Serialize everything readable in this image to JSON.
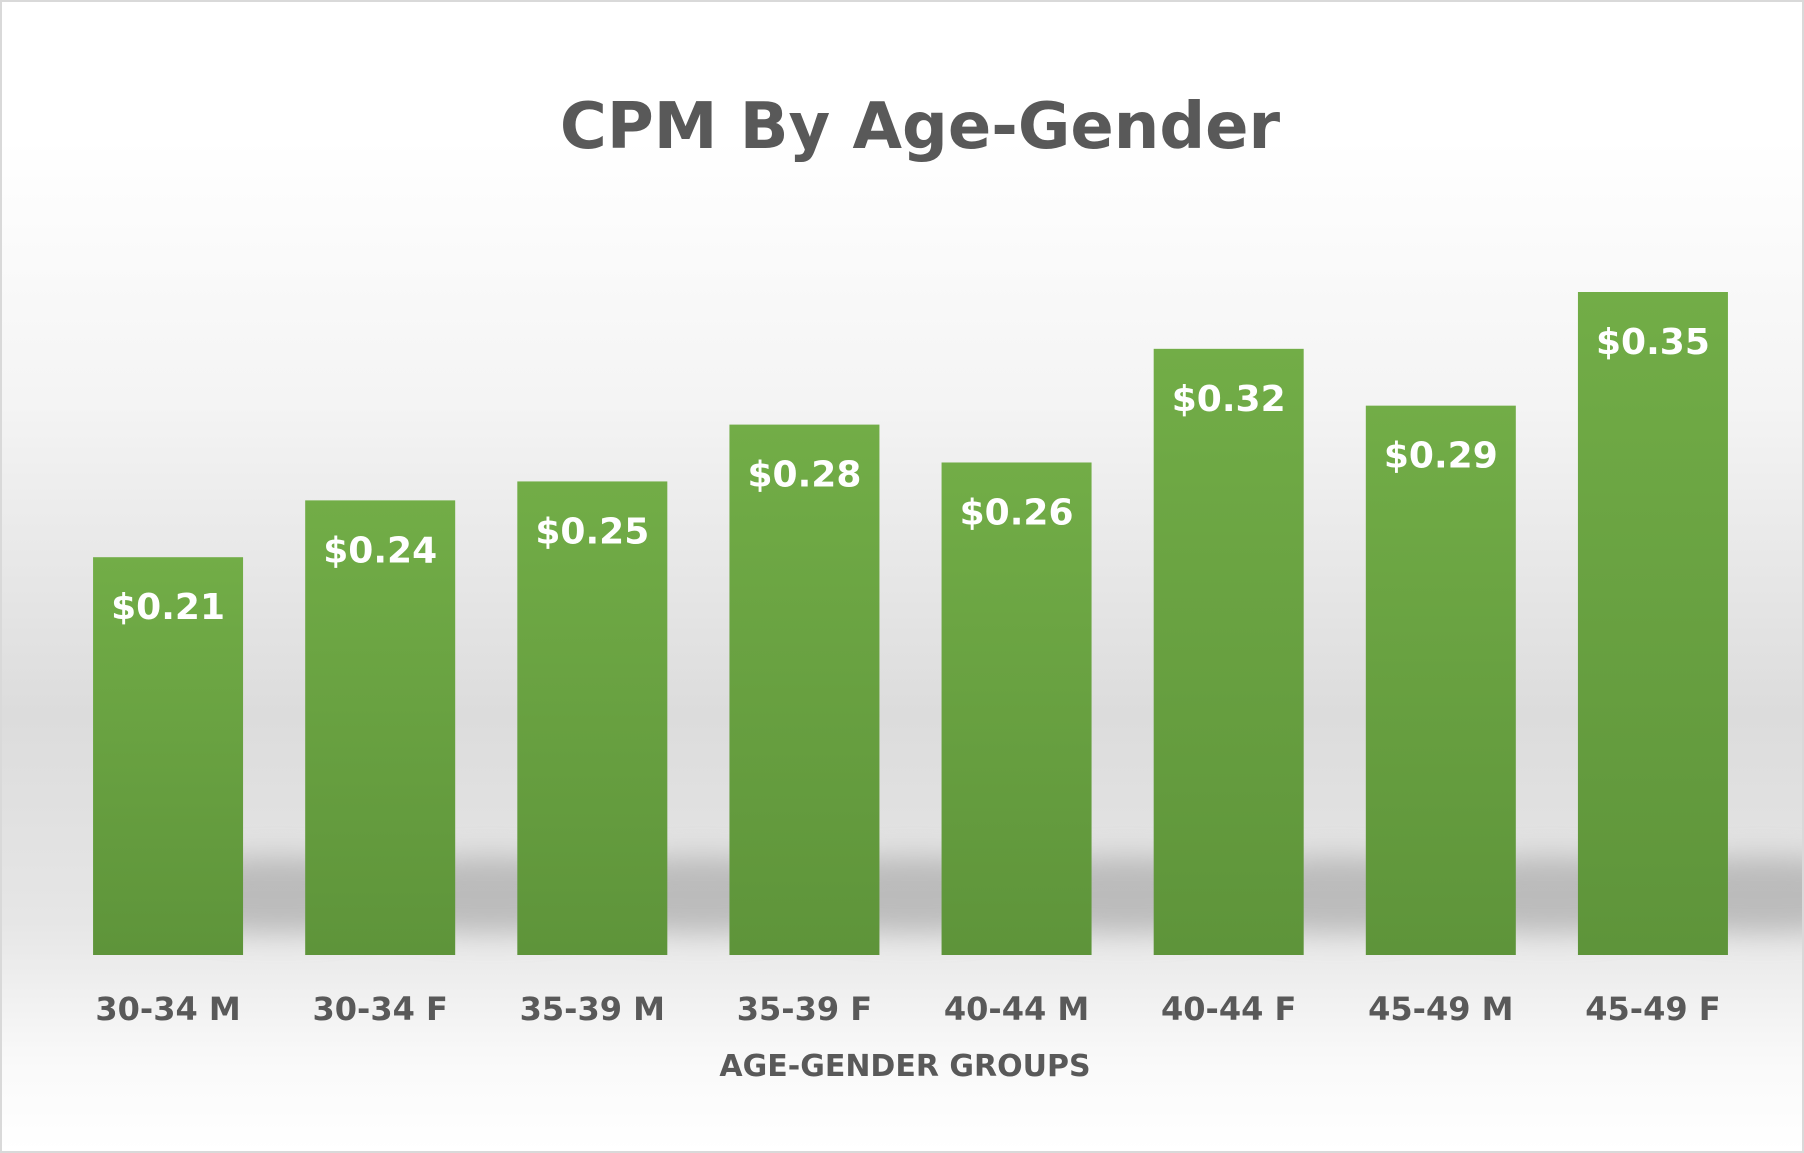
{
  "chart_data": {
    "type": "bar",
    "title": "CPM By Age-Gender",
    "xlabel": "AGE-GENDER GROUPS",
    "ylabel": "",
    "categories": [
      "30-34 M",
      "30-34 F",
      "35-39 M",
      "35-39 F",
      "40-44 M",
      "40-44 F",
      "45-49 M",
      "45-49 F"
    ],
    "values": [
      0.21,
      0.24,
      0.25,
      0.28,
      0.26,
      0.32,
      0.29,
      0.35
    ],
    "data_labels": [
      "$0.21",
      "$0.24",
      "$0.25",
      "$0.28",
      "$0.26",
      "$0.32",
      "$0.29",
      "$0.35"
    ],
    "ylim": [
      0,
      0.35
    ],
    "grid": false,
    "legend": "none",
    "colors": {
      "bar_top": "#72ad47",
      "bar_bottom": "#5e943a",
      "text": "#595959",
      "data_label": "#ffffff"
    }
  }
}
